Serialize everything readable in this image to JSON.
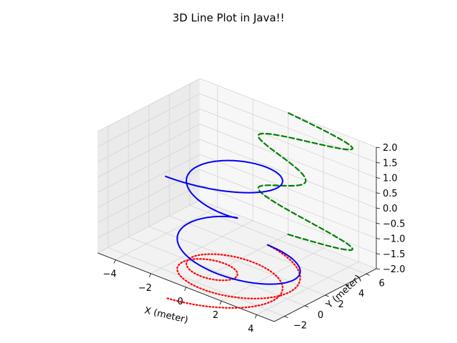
{
  "chart_data": {
    "type": "line",
    "projection": "3d",
    "title": "3D Line Plot in Java!!",
    "xlabel": "X (meter)",
    "ylabel": "Y (meter)",
    "zlabel": "",
    "xlim": [
      -5,
      5
    ],
    "ylim": [
      -3,
      7
    ],
    "zlim": [
      -2,
      2
    ],
    "xticks": [
      "−4",
      "−2",
      "0",
      "2",
      "4"
    ],
    "yticks": [
      "−2",
      "0",
      "2",
      "4",
      "6"
    ],
    "zticks": [
      "−2.0",
      "−1.5",
      "−1.0",
      "−0.5",
      "0.0",
      "0.5",
      "1.0",
      "1.5",
      "2.0"
    ],
    "grid": true,
    "legend": null,
    "series": [
      {
        "style": "solid",
        "color": "#0000ff",
        "description": "helix radius z^2+1, z from -2 to 2",
        "z_range": [
          -2,
          2
        ],
        "turns": 2.5
      },
      {
        "style": "dotted",
        "color": "#ff0000",
        "description": "projection of helix on z = -2 plane",
        "z_value": -2
      },
      {
        "style": "dashed",
        "color": "#008000",
        "description": "projection of x(z) on plane y = 7",
        "y_value": 7
      }
    ]
  }
}
